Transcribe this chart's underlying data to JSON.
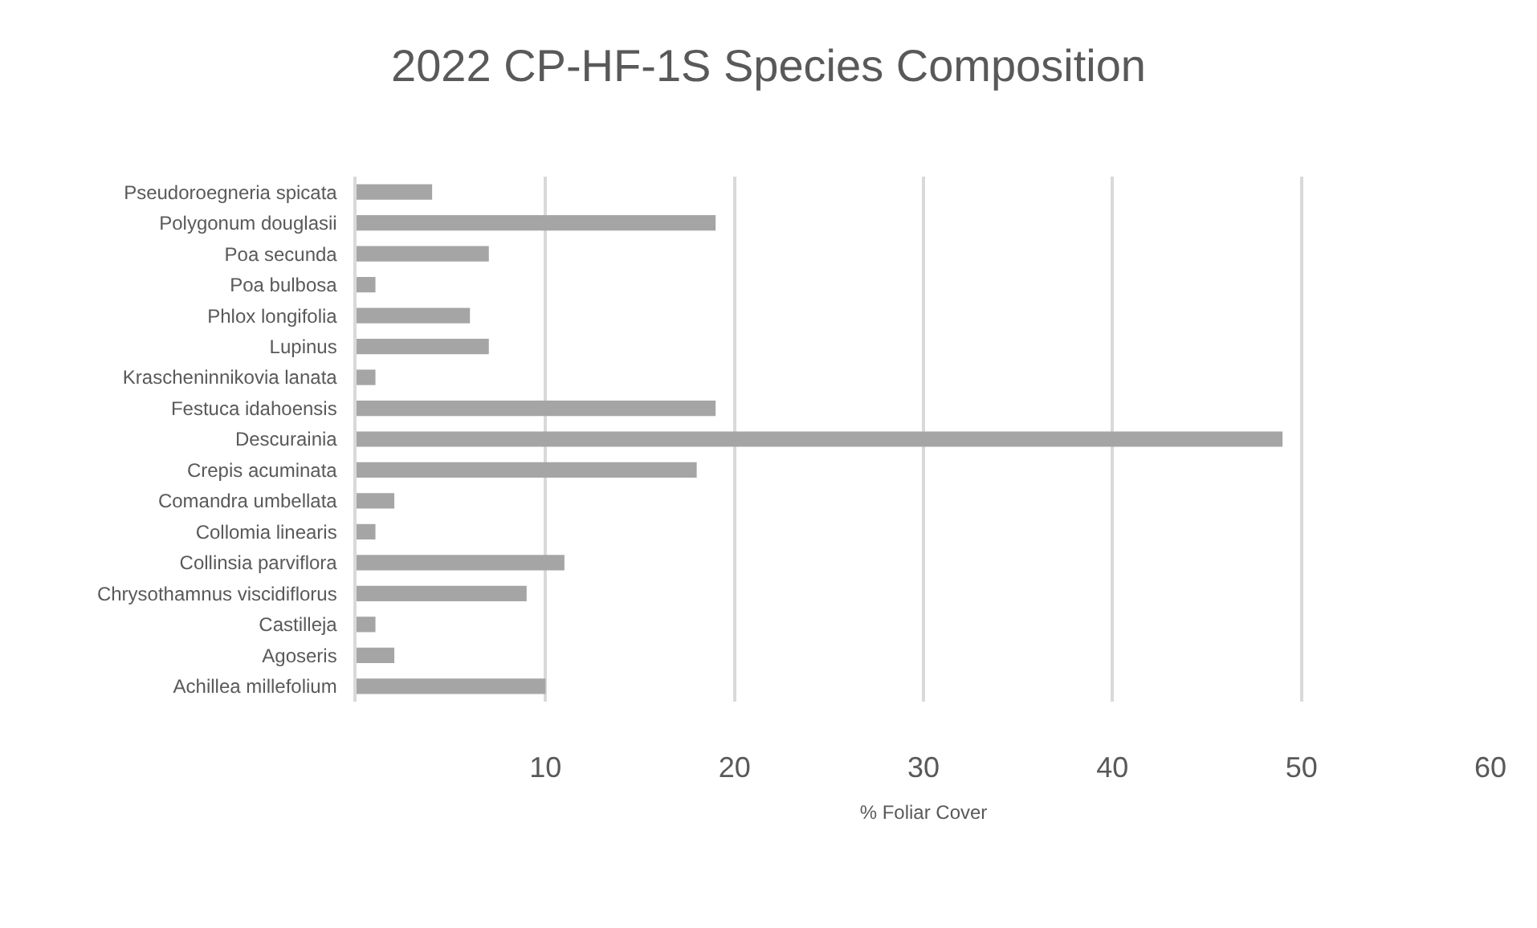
{
  "chart_data": {
    "type": "bar",
    "orientation": "horizontal",
    "title": "2022 CP-HF-1S Species Composition",
    "xlabel": "% Foliar Cover",
    "categories": [
      "Pseudoroegneria spicata",
      "Polygonum douglasii",
      "Poa secunda",
      "Poa bulbosa",
      "Phlox longifolia",
      "Lupinus",
      "Krascheninnikovia lanata",
      "Festuca idahoensis",
      "Descurainia",
      "Crepis acuminata",
      "Comandra umbellata",
      "Collomia linearis",
      "Collinsia parviflora",
      "Chrysothamnus viscidiflorus",
      "Castilleja",
      "Agoseris",
      "Achillea millefolium"
    ],
    "values": [
      4,
      19,
      7,
      1,
      6,
      7,
      1,
      19,
      49,
      18,
      2,
      1,
      11,
      9,
      1,
      2,
      10
    ],
    "color": "#a5a5a5",
    "xlim": [
      0,
      60
    ],
    "xticks": [
      10,
      20,
      30,
      40,
      50,
      60
    ],
    "grid": "x"
  }
}
